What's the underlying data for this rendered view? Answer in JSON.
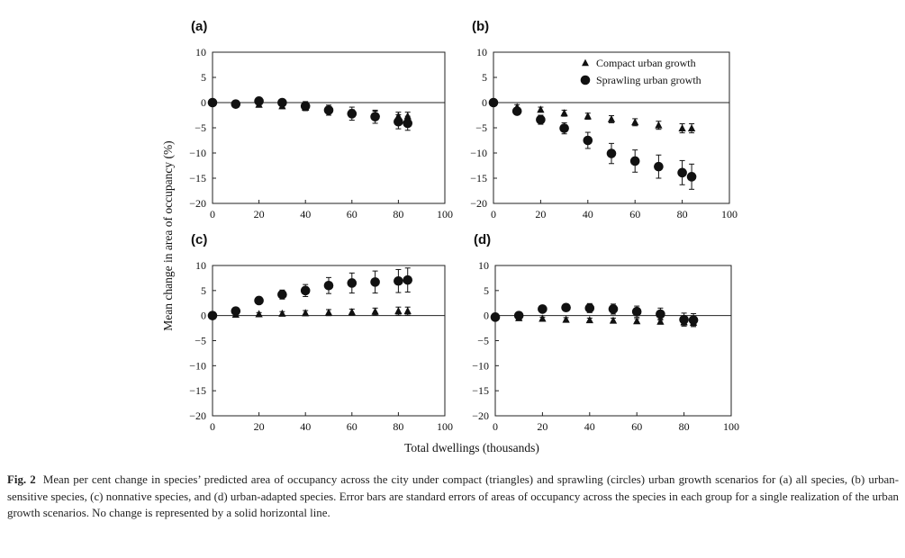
{
  "figure": {
    "ylabel": "Mean change in area of occupancy (%)",
    "xlabel": "Total dwellings (thousands)",
    "caption_label": "Fig. 2",
    "caption_text": "Mean per cent change in species’ predicted area of occupancy across the city under compact (triangles) and sprawling (circles) urban growth scenarios for (a) all species, (b) urban-sensitive species, (c) nonnative species, and (d) urban-adapted species. Error bars are standard errors of areas of occupancy across the species in each group for a single realization of the urban growth scenarios. No change is represented by a solid horizontal line."
  },
  "chart_data": [
    {
      "panel": "(a)",
      "type": "scatter",
      "xlim": [
        0,
        100
      ],
      "ylim": [
        -20,
        10
      ],
      "xticks": [
        0,
        20,
        40,
        60,
        80,
        100
      ],
      "yticks": [
        10,
        5,
        0,
        -5,
        -10,
        -15,
        -20
      ],
      "legend": false,
      "x": [
        0,
        10,
        20,
        30,
        40,
        50,
        60,
        70,
        80,
        84
      ],
      "series": [
        {
          "name": "Compact urban growth",
          "marker": "triangle",
          "values": [
            0,
            -0.3,
            -0.4,
            -0.7,
            -1.0,
            -1.5,
            -2.0,
            -2.4,
            -2.7,
            -2.7
          ],
          "err": [
            0.3,
            0.3,
            0.4,
            0.5,
            0.5,
            0.6,
            0.6,
            0.7,
            0.8,
            0.8
          ]
        },
        {
          "name": "Sprawling urban growth",
          "marker": "circle",
          "values": [
            0,
            -0.3,
            0.3,
            0.0,
            -0.7,
            -1.5,
            -2.2,
            -2.8,
            -3.8,
            -4.1
          ],
          "err": [
            0.3,
            0.4,
            0.5,
            0.6,
            0.9,
            1.0,
            1.3,
            1.3,
            1.4,
            1.4
          ]
        }
      ]
    },
    {
      "panel": "(b)",
      "type": "scatter",
      "xlim": [
        0,
        100
      ],
      "ylim": [
        -20,
        10
      ],
      "xticks": [
        0,
        20,
        40,
        60,
        80,
        100
      ],
      "yticks": [
        10,
        5,
        0,
        -5,
        -10,
        -15,
        -20
      ],
      "legend": true,
      "x": [
        0,
        10,
        20,
        30,
        40,
        50,
        60,
        70,
        80,
        84
      ],
      "series": [
        {
          "name": "Compact urban growth",
          "marker": "triangle",
          "values": [
            0,
            -0.9,
            -1.4,
            -2.1,
            -2.7,
            -3.3,
            -3.9,
            -4.5,
            -5.1,
            -5.1
          ],
          "err": [
            0.3,
            0.5,
            0.5,
            0.6,
            0.6,
            0.7,
            0.7,
            0.8,
            0.9,
            0.9
          ]
        },
        {
          "name": "Sprawling urban growth",
          "marker": "circle",
          "values": [
            0,
            -1.7,
            -3.4,
            -5.1,
            -7.5,
            -10.1,
            -11.6,
            -12.7,
            -13.9,
            -14.7
          ],
          "err": [
            0.3,
            0.7,
            0.9,
            1.1,
            1.6,
            2.0,
            2.2,
            2.3,
            2.4,
            2.5
          ]
        }
      ]
    },
    {
      "panel": "(c)",
      "type": "scatter",
      "xlim": [
        0,
        100
      ],
      "ylim": [
        -20,
        10
      ],
      "xticks": [
        0,
        20,
        40,
        60,
        80,
        100
      ],
      "yticks": [
        10,
        5,
        0,
        -5,
        -10,
        -15,
        -20
      ],
      "legend": false,
      "x": [
        0,
        10,
        20,
        30,
        40,
        50,
        60,
        70,
        80,
        84
      ],
      "series": [
        {
          "name": "Compact urban growth",
          "marker": "triangle",
          "values": [
            0,
            0.2,
            0.3,
            0.4,
            0.5,
            0.6,
            0.7,
            0.8,
            0.9,
            0.9
          ],
          "err": [
            0.2,
            0.3,
            0.3,
            0.4,
            0.5,
            0.6,
            0.6,
            0.7,
            0.8,
            0.8
          ]
        },
        {
          "name": "Sprawling urban growth",
          "marker": "circle",
          "values": [
            0,
            0.9,
            3.0,
            4.2,
            5.0,
            6.0,
            6.5,
            6.7,
            6.9,
            7.1
          ],
          "err": [
            0.2,
            0.5,
            0.6,
            0.9,
            1.2,
            1.6,
            2.0,
            2.2,
            2.3,
            2.4
          ]
        }
      ]
    },
    {
      "panel": "(d)",
      "type": "scatter",
      "xlim": [
        0,
        100
      ],
      "ylim": [
        -20,
        10
      ],
      "xticks": [
        0,
        20,
        40,
        60,
        80,
        100
      ],
      "yticks": [
        10,
        5,
        0,
        -5,
        -10,
        -15,
        -20
      ],
      "legend": false,
      "x": [
        0,
        10,
        20,
        30,
        40,
        50,
        60,
        70,
        80,
        84
      ],
      "series": [
        {
          "name": "Compact urban growth",
          "marker": "triangle",
          "values": [
            -0.3,
            -0.5,
            -0.6,
            -0.8,
            -0.9,
            -1.0,
            -1.1,
            -1.2,
            -1.3,
            -1.4
          ],
          "err": [
            0.2,
            0.3,
            0.3,
            0.4,
            0.4,
            0.5,
            0.5,
            0.5,
            0.6,
            0.6
          ]
        },
        {
          "name": "Sprawling urban growth",
          "marker": "circle",
          "values": [
            -0.3,
            0.0,
            1.3,
            1.6,
            1.5,
            1.3,
            0.8,
            0.3,
            -0.8,
            -0.9
          ],
          "err": [
            0.2,
            0.4,
            0.6,
            0.7,
            0.9,
            1.0,
            1.1,
            1.2,
            1.3,
            1.3
          ]
        }
      ]
    }
  ]
}
